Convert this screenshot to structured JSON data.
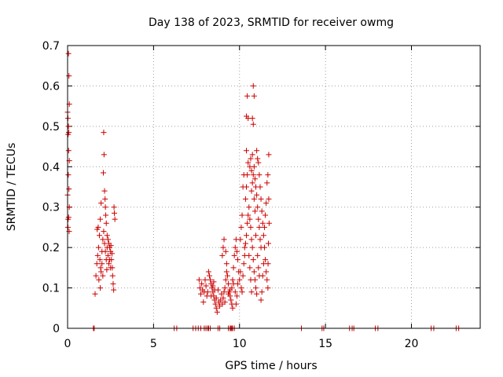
{
  "chart_data": {
    "type": "scatter",
    "title": "Day 138 of 2023, SRMTID for receiver owmg",
    "xlabel": "GPS time / hours",
    "ylabel": "SRMTID / TECUs",
    "xlim": [
      0,
      24
    ],
    "ylim": [
      0,
      0.7
    ],
    "xticks": [
      0,
      5,
      10,
      15,
      20
    ],
    "xtick_labels": [
      "0",
      "5",
      "10",
      "15",
      "20"
    ],
    "yticks": [
      0,
      0.1,
      0.2,
      0.3,
      0.4,
      0.5,
      0.6,
      0.7
    ],
    "ytick_labels": [
      "0",
      "0.1",
      "0.2",
      "0.3",
      "0.4",
      "0.5",
      "0.6",
      "0.7"
    ],
    "grid": true,
    "marker": "+",
    "color": "#cc0000",
    "series": [
      {
        "name": "SRMTID",
        "points": [
          [
            0.05,
            0.68
          ],
          [
            0.08,
            0.625
          ],
          [
            0.1,
            0.555
          ],
          [
            0.0,
            0.535
          ],
          [
            0.02,
            0.52
          ],
          [
            0.05,
            0.5
          ],
          [
            0.07,
            0.485
          ],
          [
            0.03,
            0.48
          ],
          [
            0.06,
            0.44
          ],
          [
            0.1,
            0.415
          ],
          [
            0.04,
            0.38
          ],
          [
            0.08,
            0.345
          ],
          [
            0.0,
            0.33
          ],
          [
            0.06,
            0.275
          ],
          [
            0.03,
            0.27
          ],
          [
            0.09,
            0.24
          ],
          [
            0.02,
            0.25
          ],
          [
            0.1,
            0.3
          ],
          [
            1.6,
            0.085
          ],
          [
            1.65,
            0.13
          ],
          [
            1.7,
            0.16
          ],
          [
            1.75,
            0.18
          ],
          [
            1.8,
            0.2
          ],
          [
            1.72,
            0.245
          ],
          [
            1.78,
            0.25
          ],
          [
            1.85,
            0.23
          ],
          [
            1.9,
            0.27
          ],
          [
            1.95,
            0.31
          ],
          [
            1.88,
            0.17
          ],
          [
            1.92,
            0.15
          ],
          [
            2.0,
            0.19
          ],
          [
            2.05,
            0.22
          ],
          [
            2.1,
            0.485
          ],
          [
            2.12,
            0.43
          ],
          [
            2.08,
            0.385
          ],
          [
            2.15,
            0.34
          ],
          [
            2.18,
            0.32
          ],
          [
            2.2,
            0.3
          ],
          [
            2.22,
            0.28
          ],
          [
            2.25,
            0.26
          ],
          [
            2.1,
            0.24
          ],
          [
            2.15,
            0.21
          ],
          [
            2.2,
            0.19
          ],
          [
            2.25,
            0.17
          ],
          [
            2.3,
            0.2
          ],
          [
            2.35,
            0.18
          ],
          [
            2.4,
            0.16
          ],
          [
            2.45,
            0.2
          ],
          [
            2.5,
            0.19
          ],
          [
            2.55,
            0.17
          ],
          [
            2.6,
            0.15
          ],
          [
            2.62,
            0.13
          ],
          [
            2.65,
            0.11
          ],
          [
            2.68,
            0.095
          ],
          [
            2.7,
            0.3
          ],
          [
            2.72,
            0.285
          ],
          [
            2.75,
            0.27
          ],
          [
            2.0,
            0.16
          ],
          [
            1.95,
            0.14
          ],
          [
            2.3,
            0.23
          ],
          [
            2.35,
            0.22
          ],
          [
            2.4,
            0.21
          ],
          [
            2.45,
            0.17
          ],
          [
            2.5,
            0.15
          ],
          [
            1.82,
            0.12
          ],
          [
            1.9,
            0.1
          ],
          [
            2.05,
            0.13
          ],
          [
            2.28,
            0.145
          ],
          [
            2.52,
            0.205
          ],
          [
            2.58,
            0.185
          ],
          [
            7.65,
            0.12
          ],
          [
            7.7,
            0.1
          ],
          [
            7.75,
            0.085
          ],
          [
            7.8,
            0.11
          ],
          [
            7.85,
            0.095
          ],
          [
            7.9,
            0.065
          ],
          [
            7.95,
            0.09
          ],
          [
            8.0,
            0.12
          ],
          [
            8.05,
            0.105
          ],
          [
            8.1,
            0.08
          ],
          [
            8.2,
            0.14
          ],
          [
            8.25,
            0.13
          ],
          [
            8.3,
            0.12
          ],
          [
            8.35,
            0.11
          ],
          [
            8.4,
            0.1
          ],
          [
            8.45,
            0.09
          ],
          [
            8.5,
            0.08
          ],
          [
            8.55,
            0.07
          ],
          [
            8.6,
            0.06
          ],
          [
            8.65,
            0.05
          ],
          [
            8.7,
            0.04
          ],
          [
            8.5,
            0.115
          ],
          [
            8.45,
            0.105
          ],
          [
            8.55,
            0.095
          ],
          [
            8.65,
            0.075
          ],
          [
            8.8,
            0.065
          ],
          [
            8.85,
            0.055
          ],
          [
            8.9,
            0.07
          ],
          [
            9.0,
            0.06
          ],
          [
            9.05,
            0.075
          ],
          [
            9.1,
            0.09
          ],
          [
            9.15,
            0.1
          ],
          [
            9.2,
            0.12
          ],
          [
            9.25,
            0.14
          ],
          [
            9.0,
            0.18
          ],
          [
            9.05,
            0.2
          ],
          [
            9.1,
            0.22
          ],
          [
            9.2,
            0.19
          ],
          [
            9.25,
            0.16
          ],
          [
            9.3,
            0.13
          ],
          [
            9.35,
            0.11
          ],
          [
            9.4,
            0.09
          ],
          [
            9.45,
            0.08
          ],
          [
            9.5,
            0.07
          ],
          [
            9.55,
            0.06
          ],
          [
            9.6,
            0.05
          ],
          [
            9.35,
            0.085
          ],
          [
            9.45,
            0.095
          ],
          [
            9.55,
            0.1
          ],
          [
            9.6,
            0.12
          ],
          [
            9.65,
            0.15
          ],
          [
            9.7,
            0.18
          ],
          [
            9.75,
            0.2
          ],
          [
            9.8,
            0.22
          ],
          [
            9.85,
            0.19
          ],
          [
            9.9,
            0.17
          ],
          [
            9.95,
            0.14
          ],
          [
            9.65,
            0.11
          ],
          [
            9.75,
            0.09
          ],
          [
            9.85,
            0.08
          ],
          [
            9.8,
            0.06
          ],
          [
            9.9,
            0.11
          ],
          [
            8.95,
            0.085
          ],
          [
            9.15,
            0.065
          ],
          [
            8.75,
            0.095
          ],
          [
            8.35,
            0.08
          ],
          [
            8.15,
            0.09
          ],
          [
            10.0,
            0.12
          ],
          [
            10.05,
            0.14
          ],
          [
            10.1,
            0.1
          ],
          [
            10.15,
            0.09
          ],
          [
            10.2,
            0.13
          ],
          [
            10.25,
            0.16
          ],
          [
            10.3,
            0.18
          ],
          [
            10.35,
            0.21
          ],
          [
            10.4,
            0.23
          ],
          [
            10.45,
            0.26
          ],
          [
            10.5,
            0.28
          ],
          [
            10.3,
            0.2
          ],
          [
            10.35,
            0.32
          ],
          [
            10.4,
            0.35
          ],
          [
            10.45,
            0.38
          ],
          [
            10.5,
            0.41
          ],
          [
            10.4,
            0.44
          ],
          [
            10.45,
            0.575
          ],
          [
            10.4,
            0.525
          ],
          [
            10.5,
            0.52
          ],
          [
            10.55,
            0.3
          ],
          [
            10.6,
            0.27
          ],
          [
            10.65,
            0.25
          ],
          [
            10.7,
            0.22
          ],
          [
            10.75,
            0.2
          ],
          [
            10.8,
            0.17
          ],
          [
            10.85,
            0.14
          ],
          [
            10.9,
            0.12
          ],
          [
            10.95,
            0.1
          ],
          [
            11.0,
            0.085
          ],
          [
            10.6,
            0.4
          ],
          [
            10.65,
            0.42
          ],
          [
            10.7,
            0.39
          ],
          [
            10.75,
            0.43
          ],
          [
            10.8,
            0.38
          ],
          [
            10.85,
            0.4
          ],
          [
            10.9,
            0.37
          ],
          [
            10.95,
            0.35
          ],
          [
            11.0,
            0.33
          ],
          [
            11.05,
            0.3
          ],
          [
            11.1,
            0.27
          ],
          [
            11.15,
            0.25
          ],
          [
            11.2,
            0.22
          ],
          [
            11.25,
            0.2
          ],
          [
            10.8,
            0.6
          ],
          [
            10.85,
            0.575
          ],
          [
            10.75,
            0.52
          ],
          [
            10.8,
            0.505
          ],
          [
            10.7,
            0.34
          ],
          [
            10.75,
            0.36
          ],
          [
            10.85,
            0.32
          ],
          [
            10.9,
            0.29
          ],
          [
            11.0,
            0.44
          ],
          [
            11.05,
            0.42
          ],
          [
            11.1,
            0.41
          ],
          [
            11.15,
            0.38
          ],
          [
            11.2,
            0.35
          ],
          [
            11.25,
            0.32
          ],
          [
            11.3,
            0.29
          ],
          [
            11.35,
            0.26
          ],
          [
            11.4,
            0.23
          ],
          [
            11.45,
            0.2
          ],
          [
            11.5,
            0.17
          ],
          [
            11.55,
            0.14
          ],
          [
            11.6,
            0.12
          ],
          [
            11.65,
            0.1
          ],
          [
            11.7,
            0.43
          ],
          [
            11.65,
            0.38
          ],
          [
            11.6,
            0.36
          ],
          [
            11.55,
            0.31
          ],
          [
            11.5,
            0.28
          ],
          [
            11.45,
            0.25
          ],
          [
            11.4,
            0.16
          ],
          [
            11.35,
            0.13
          ],
          [
            11.3,
            0.09
          ],
          [
            11.25,
            0.07
          ],
          [
            10.55,
            0.18
          ],
          [
            10.6,
            0.15
          ],
          [
            10.65,
            0.12
          ],
          [
            10.7,
            0.09
          ],
          [
            10.2,
            0.35
          ],
          [
            10.25,
            0.38
          ],
          [
            10.15,
            0.28
          ],
          [
            10.1,
            0.25
          ],
          [
            10.05,
            0.22
          ],
          [
            11.05,
            0.18
          ],
          [
            11.1,
            0.15
          ],
          [
            11.15,
            0.13
          ],
          [
            10.95,
            0.23
          ],
          [
            11.7,
            0.32
          ],
          [
            11.72,
            0.26
          ],
          [
            11.68,
            0.21
          ],
          [
            11.66,
            0.16
          ]
        ]
      }
    ],
    "zero_points_x": [
      1.5,
      1.55,
      6.2,
      6.35,
      7.3,
      7.45,
      7.6,
      7.75,
      7.95,
      8.05,
      8.15,
      8.2,
      8.3,
      8.75,
      8.85,
      9.35,
      9.45,
      9.5,
      9.55,
      9.6,
      9.7,
      13.6,
      14.8,
      14.9,
      16.4,
      16.55,
      16.65,
      17.9,
      18.05,
      21.15,
      21.3,
      22.6,
      22.75
    ]
  }
}
